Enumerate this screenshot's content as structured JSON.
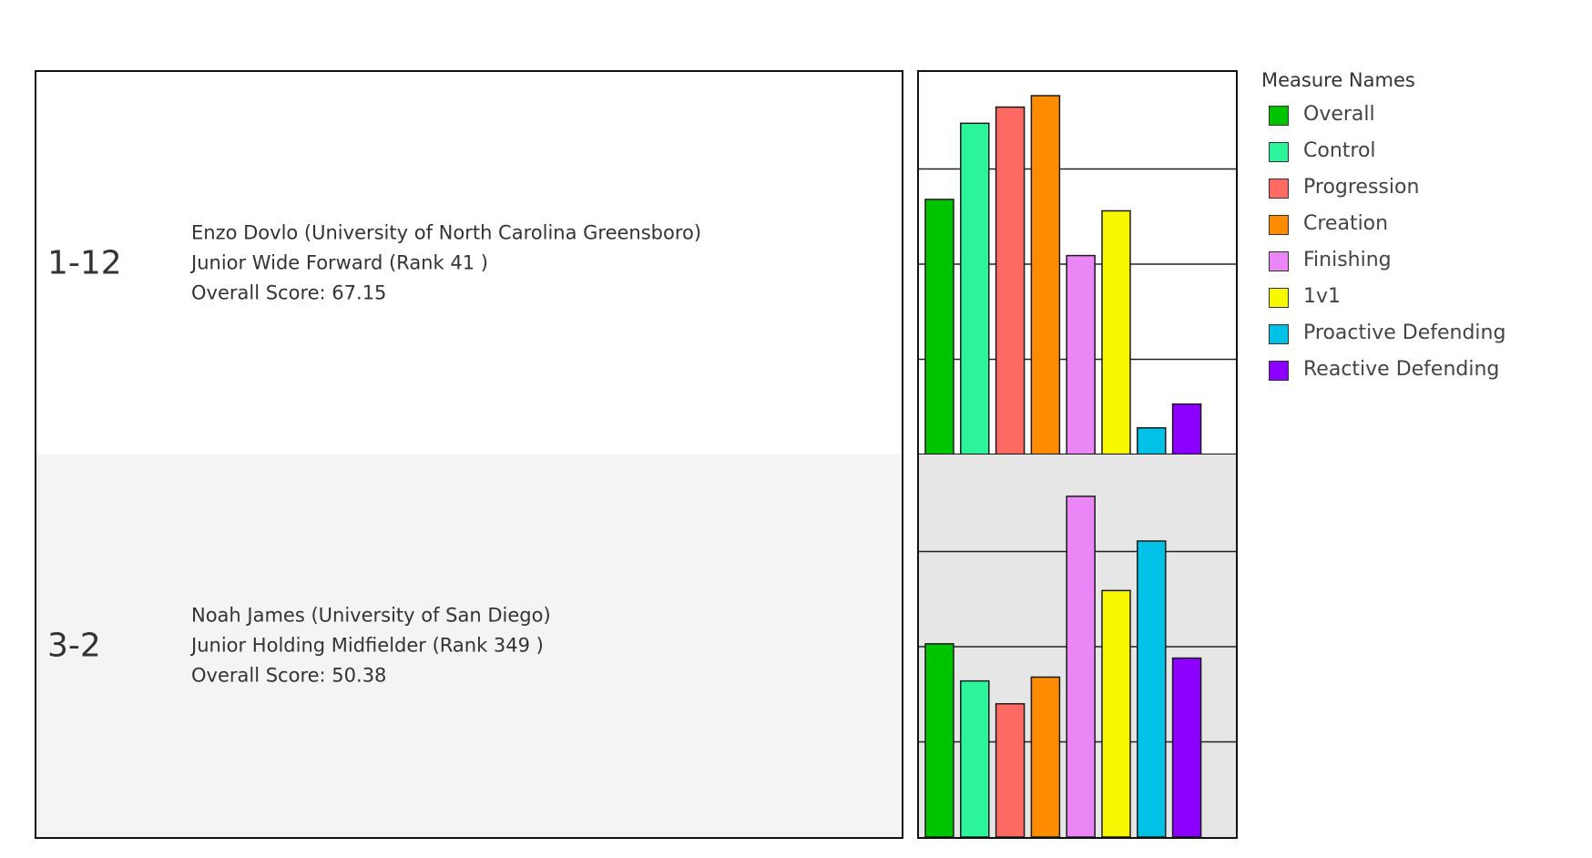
{
  "rows": [
    {
      "label": "1-12",
      "player": {
        "line1": "Enzo Dovlo (University of North Carolina Greensboro)",
        "line2": "Junior Wide Forward  (Rank 41 )",
        "line3": "Overall Score: 67.15"
      }
    },
    {
      "label": "3-2",
      "player": {
        "line1": "Noah James (University of San Diego)",
        "line2": "Junior Holding Midfielder  (Rank 349 )",
        "line3": "Overall Score: 50.38"
      }
    }
  ],
  "legend": {
    "title": "Measure Names",
    "items": [
      {
        "label": "Overall",
        "color": "#00c400"
      },
      {
        "label": "Control",
        "color": "#2cf49a"
      },
      {
        "label": "Progression",
        "color": "#ff6b63"
      },
      {
        "label": "Creation",
        "color": "#ff8c00"
      },
      {
        "label": "Finishing",
        "color": "#ea86f5"
      },
      {
        "label": "1v1",
        "color": "#f7f700"
      },
      {
        "label": "Proactive Defending",
        "color": "#00c1e6"
      },
      {
        "label": "Reactive Defending",
        "color": "#8c00ff"
      }
    ]
  },
  "chart_data": {
    "type": "bar",
    "categories": [
      "Overall",
      "Control",
      "Progression",
      "Creation",
      "Finishing",
      "1v1",
      "Proactive Defending",
      "Reactive Defending"
    ],
    "series": [
      {
        "name": "1-12",
        "values": [
          2.68,
          3.48,
          3.65,
          3.77,
          2.09,
          2.56,
          0.28,
          0.53
        ]
      },
      {
        "name": "3-2",
        "values": [
          2.03,
          1.64,
          1.4,
          1.68,
          3.58,
          2.59,
          3.11,
          1.88
        ]
      }
    ],
    "ylim": [
      0,
      4
    ],
    "grid": true,
    "title": "",
    "xlabel": "",
    "ylabel": ""
  }
}
